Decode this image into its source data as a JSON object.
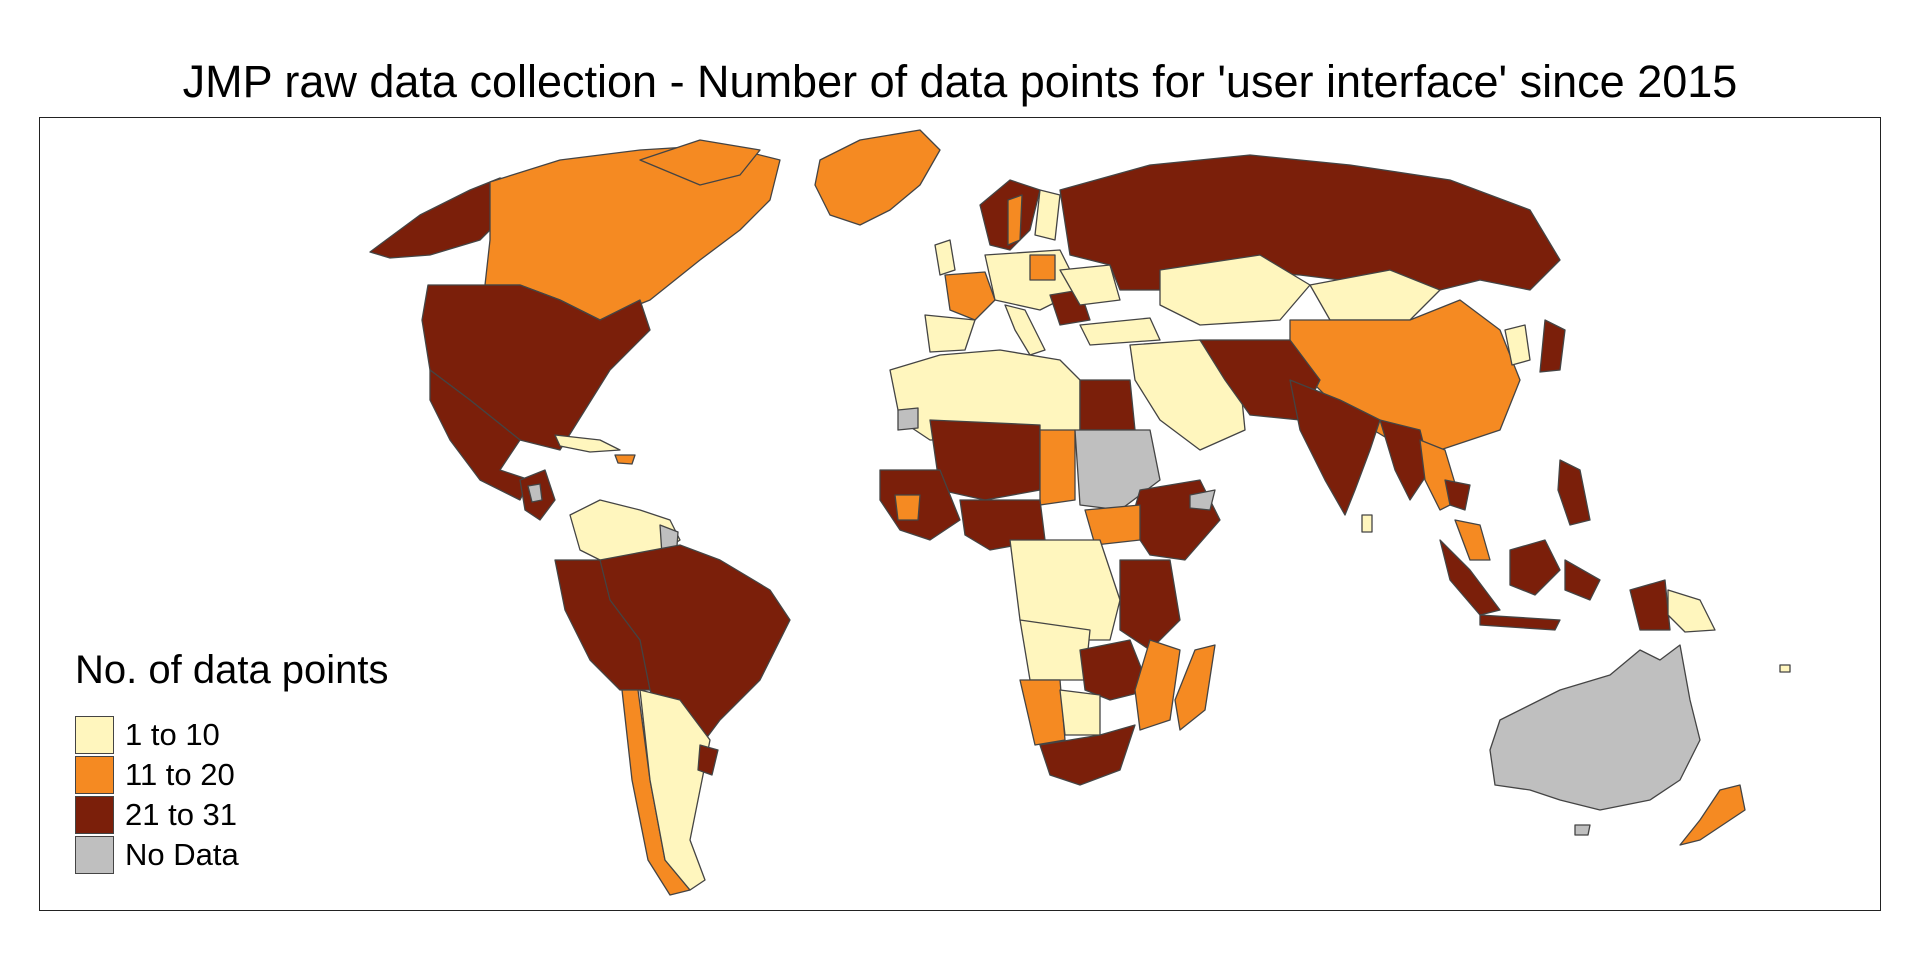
{
  "map": {
    "title": "JMP raw data collection - Number of data points for 'user interface' since 2015",
    "legend": {
      "title": "No. of data points",
      "items": [
        {
          "label": "1 to 10",
          "color": "#fff6be"
        },
        {
          "label": "11 to 20",
          "color": "#f58a22"
        },
        {
          "label": "21 to 31",
          "color": "#7b1f0a"
        },
        {
          "label": "No Data",
          "color": "#bfbfbf"
        }
      ]
    },
    "border_color": "#444444"
  }
}
